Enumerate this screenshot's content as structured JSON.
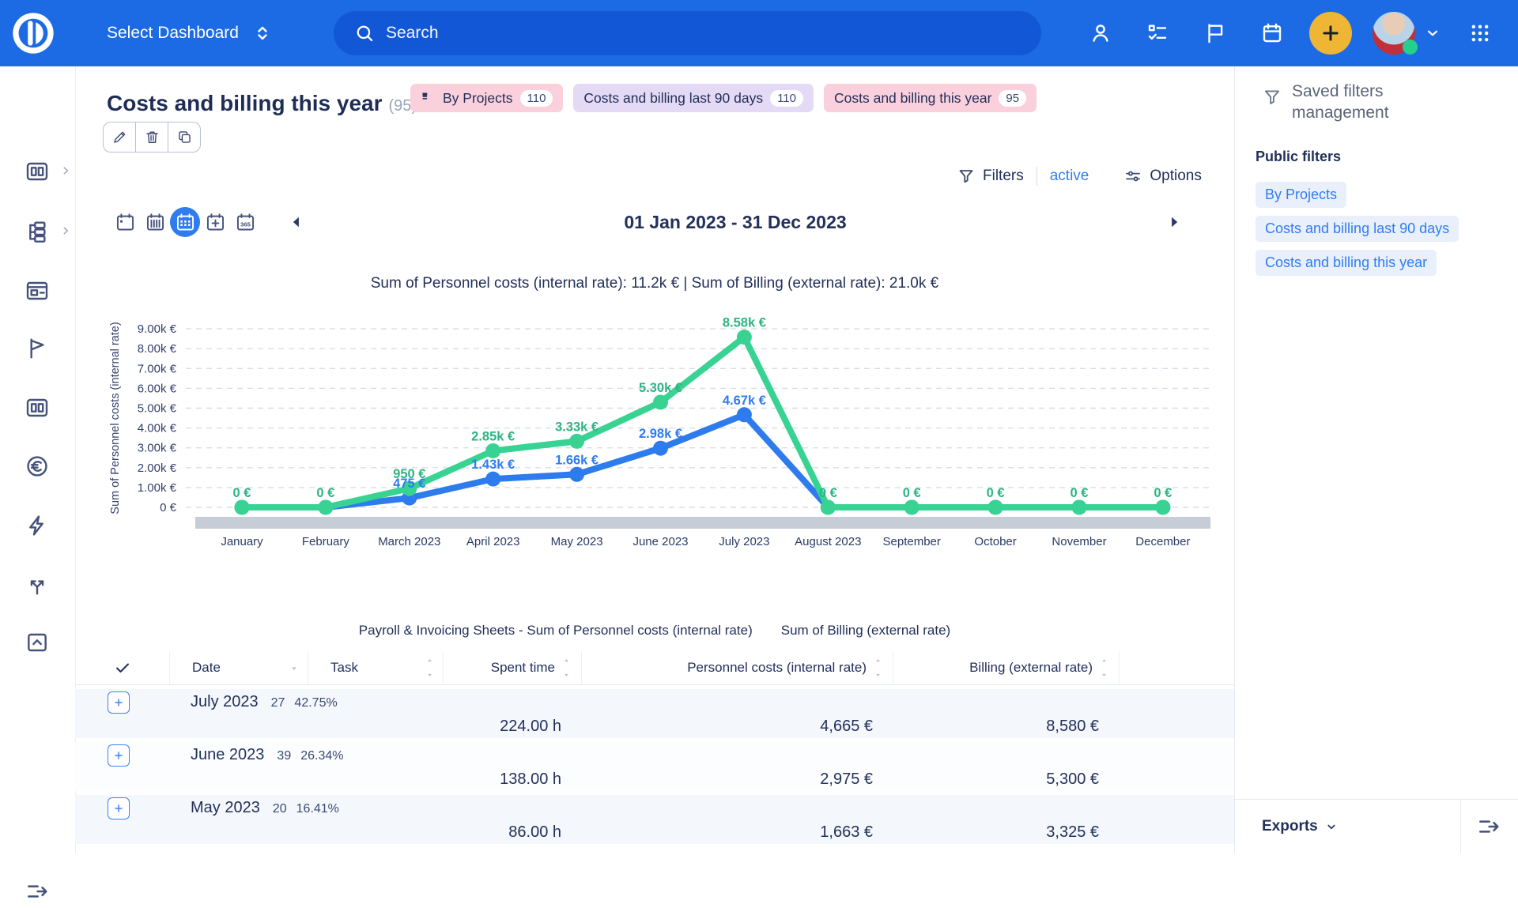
{
  "topbar": {
    "dashboard_selector": "Select Dashboard",
    "search_placeholder": "Search",
    "icons": [
      "profile-icon",
      "tasks-icon",
      "flag-icon",
      "calendar-icon",
      "add-icon",
      "user-avatar",
      "apps-grid-icon"
    ],
    "colors": {
      "bar": "#1d6be4",
      "search_pill": "#1157d6",
      "add_button": "#efb636",
      "status_online": "#25cf8d"
    }
  },
  "sidebar": {
    "items": [
      {
        "icon": "dashboards-icon",
        "chevron": true
      },
      {
        "icon": "projects-icon",
        "chevron": true
      },
      {
        "icon": "timesheet-icon"
      },
      {
        "icon": "milestones-flag-icon"
      },
      {
        "icon": "reports-icon"
      },
      {
        "icon": "billing-euro-icon"
      },
      {
        "icon": "automations-icon"
      },
      {
        "icon": "integrations-icon"
      },
      {
        "icon": "export-box-icon"
      }
    ]
  },
  "page": {
    "title": "Costs and billing this year",
    "count": "(95)",
    "chips": [
      {
        "label": "By Projects",
        "count": "110",
        "bg": "#fbd0dd",
        "icon": "board-icon"
      },
      {
        "label": "Costs and billing last 90 days",
        "count": "110",
        "bg": "#e4daf5"
      },
      {
        "label": "Costs and billing this year",
        "count": "95",
        "bg": "#fbd0dd"
      }
    ],
    "actions": [
      "edit",
      "delete",
      "duplicate"
    ]
  },
  "toolbar": {
    "filters_label": "Filters",
    "filters_state": "active",
    "options_label": "Options"
  },
  "date_nav": {
    "range_label": "01 Jan 2023 - 31 Dec 2023",
    "views": [
      {
        "icon": "calendar-day-icon",
        "selected": false
      },
      {
        "icon": "calendar-week-icon",
        "selected": false
      },
      {
        "icon": "calendar-month-icon",
        "selected": true
      },
      {
        "icon": "calendar-custom-icon",
        "selected": false
      },
      {
        "icon": "calendar-year-icon",
        "selected": false
      }
    ]
  },
  "chart_data": {
    "type": "line",
    "title": "Sum of Personnel costs (internal rate): 11.2k € | Sum of Billing (external rate): 21.0k €",
    "ylabel": "Sum of Personnel costs (internal rate)",
    "categories": [
      "January",
      "February",
      "March 2023",
      "April 2023",
      "May 2023",
      "June 2023",
      "July 2023",
      "August 2023",
      "September",
      "October",
      "November",
      "December"
    ],
    "series": [
      {
        "name": "Payroll & Invoicing Sheets - Sum of Personnel costs (internal rate)",
        "color": "#2e7bee",
        "label_color": "#2e7cf0",
        "values": [
          0,
          0,
          475,
          1430,
          1660,
          2980,
          4670,
          0,
          0,
          0,
          0,
          0
        ],
        "labels": [
          null,
          null,
          "475 €",
          "1.43k €",
          "1.66k €",
          "2.98k €",
          "4.67k €",
          null,
          null,
          null,
          null,
          null
        ]
      },
      {
        "name": "Sum of Billing (external rate)",
        "color": "#38d392",
        "label_color": "#2db482",
        "values": [
          0,
          0,
          950,
          2850,
          3330,
          5300,
          8580,
          0,
          0,
          0,
          0,
          0
        ],
        "labels": [
          "0 €",
          "0 €",
          "950 €",
          "2.85k €",
          "3.33k €",
          "5.30k €",
          "8.58k €",
          "0 €",
          "0 €",
          "0 €",
          "0 €",
          "0 €"
        ]
      }
    ],
    "ylim": [
      0,
      9000
    ],
    "ytick_labels": [
      "0 €",
      "1.00k €",
      "2.00k €",
      "3.00k €",
      "4.00k €",
      "5.00k €",
      "6.00k €",
      "7.00k €",
      "8.00k €",
      "9.00k €"
    ],
    "grid": true,
    "legend": [
      "Payroll & Invoicing Sheets - Sum of Personnel costs (internal rate)",
      "Sum of Billing (external rate)"
    ],
    "legend_position": "bottom"
  },
  "table": {
    "columns": [
      "Date",
      "Task",
      "Spent time",
      "Personnel costs (internal rate)",
      "Billing (external rate)"
    ],
    "rows": [
      {
        "date": "July 2023",
        "tasks": "27",
        "percent": "42.75%",
        "spent": "224.00 h",
        "personnel": "4,665 €",
        "billing": "8,580 €"
      },
      {
        "date": "June 2023",
        "tasks": "39",
        "percent": "26.34%",
        "spent": "138.00 h",
        "personnel": "2,975 €",
        "billing": "5,300 €"
      },
      {
        "date": "May 2023",
        "tasks": "20",
        "percent": "16.41%",
        "spent": "86.00 h",
        "personnel": "1,663 €",
        "billing": "3,325 €"
      }
    ]
  },
  "right_panel": {
    "title": "Saved filters management",
    "section_title": "Public filters",
    "public_filters": [
      "By Projects",
      "Costs and billing last 90 days",
      "Costs and billing this year"
    ],
    "exports_label": "Exports"
  }
}
